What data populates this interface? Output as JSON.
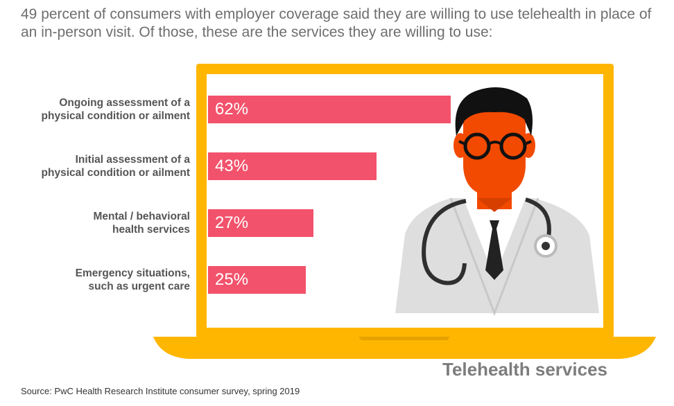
{
  "subtitle": "49 percent of consumers with employer coverage said they are willing to use telehealth in place of an in-person visit. Of those, these are the services they are willing to use:",
  "footer_title": "Telehealth services",
  "source": "Source: PwC Health Research Institute consumer survey, spring 2019",
  "colors": {
    "bar": "#f2526b",
    "laptop": "#ffb600",
    "face": "#f24a00",
    "coat": "#dcdcdc"
  },
  "chart_data": {
    "type": "bar",
    "orientation": "horizontal",
    "categories": [
      "Ongoing assessment of a physical condition or ailment",
      "Initial assessment of a physical condition or ailment",
      "Mental / behavioral health services",
      "Emergency situations, such as urgent care"
    ],
    "category_lines": [
      [
        "Ongoing assessment of a",
        "physical condition or ailment"
      ],
      [
        "Initial assessment of a",
        "physical condition or ailment"
      ],
      [
        "Mental / behavioral",
        "health services"
      ],
      [
        "Emergency situations,",
        "such as urgent care"
      ]
    ],
    "values": [
      62,
      43,
      27,
      25
    ],
    "value_labels": [
      "62%",
      "43%",
      "27%",
      "25%"
    ],
    "unit": "%",
    "xlim": [
      0,
      100
    ],
    "grid": false,
    "legend": "none"
  }
}
